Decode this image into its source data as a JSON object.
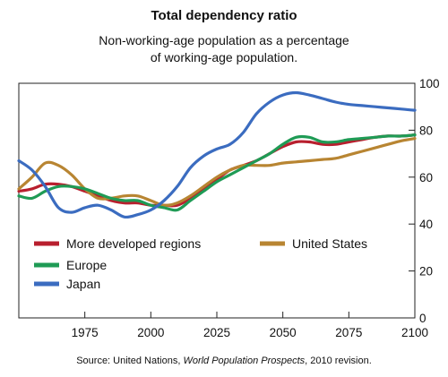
{
  "chart_data": {
    "type": "line",
    "title": "Total dependency ratio",
    "subtitle_lines": [
      "Non-working-age population as a percentage",
      "of working-age population."
    ],
    "xlabel": "",
    "ylabel": "",
    "xlim": [
      1950,
      2100
    ],
    "ylim": [
      0,
      100
    ],
    "x_ticks": [
      1975,
      2000,
      2025,
      2050,
      2075,
      2100
    ],
    "y_ticks": [
      0,
      20,
      40,
      60,
      80,
      100
    ],
    "y_axis_side": "right",
    "grid": false,
    "legend_placement": "lower-left",
    "series": [
      {
        "name": "More developed regions",
        "color": "#b81f2e",
        "x": [
          1950,
          1955,
          1960,
          1965,
          1970,
          1975,
          1980,
          1985,
          1990,
          1995,
          2000,
          2005,
          2010,
          2015,
          2020,
          2025,
          2030,
          2035,
          2040,
          2045,
          2050,
          2055,
          2060,
          2065,
          2070,
          2075,
          2080,
          2085,
          2090,
          2095,
          2100
        ],
        "y": [
          54,
          55,
          57,
          57,
          56,
          54,
          52,
          50,
          49,
          49,
          48,
          48,
          48,
          51,
          55,
          59,
          63,
          65,
          67,
          70,
          73,
          75,
          75,
          74,
          74,
          75,
          76,
          77,
          77.5,
          77.5,
          78
        ]
      },
      {
        "name": "United States",
        "color": "#b88532",
        "x": [
          1950,
          1955,
          1960,
          1965,
          1970,
          1975,
          1980,
          1985,
          1990,
          1995,
          2000,
          2005,
          2010,
          2015,
          2020,
          2025,
          2030,
          2035,
          2040,
          2045,
          2050,
          2055,
          2060,
          2065,
          2070,
          2075,
          2080,
          2085,
          2090,
          2095,
          2100
        ],
        "y": [
          55,
          60,
          66,
          65,
          61,
          55,
          51,
          51,
          52,
          52,
          50,
          48,
          49,
          52,
          56,
          60,
          63,
          65,
          65,
          65,
          66,
          66.5,
          67,
          67.5,
          68,
          69.5,
          71,
          72.5,
          74,
          75.5,
          76.5
        ]
      },
      {
        "name": "Europe",
        "color": "#1f9b55",
        "x": [
          1950,
          1955,
          1960,
          1965,
          1970,
          1975,
          1980,
          1985,
          1990,
          1995,
          2000,
          2005,
          2010,
          2015,
          2020,
          2025,
          2030,
          2035,
          2040,
          2045,
          2050,
          2055,
          2060,
          2065,
          2070,
          2075,
          2080,
          2085,
          2090,
          2095,
          2100
        ],
        "y": [
          52,
          51,
          54,
          56,
          56,
          55,
          53,
          51,
          50,
          50,
          48,
          47,
          46,
          50,
          54,
          58,
          61,
          64,
          67,
          70,
          74,
          77,
          77,
          75,
          75,
          76,
          76.5,
          77,
          77.5,
          77.5,
          78
        ]
      },
      {
        "name": "Japan",
        "color": "#3b6cc0",
        "x": [
          1950,
          1955,
          1960,
          1965,
          1970,
          1975,
          1980,
          1985,
          1990,
          1995,
          2000,
          2005,
          2010,
          2015,
          2020,
          2025,
          2030,
          2035,
          2040,
          2045,
          2050,
          2055,
          2060,
          2065,
          2070,
          2075,
          2080,
          2085,
          2090,
          2095,
          2100
        ],
        "y": [
          67,
          63,
          56,
          47,
          45,
          47,
          48,
          46,
          43,
          44,
          46,
          50,
          56,
          64,
          69,
          72,
          74,
          79,
          87,
          92,
          95,
          96,
          95,
          93.5,
          92,
          91,
          90.5,
          90,
          89.5,
          89,
          88.5
        ]
      }
    ],
    "source_prefix": "Source: United Nations, ",
    "source_italic": "World Population Prospects",
    "source_suffix": ", 2010 revision."
  }
}
